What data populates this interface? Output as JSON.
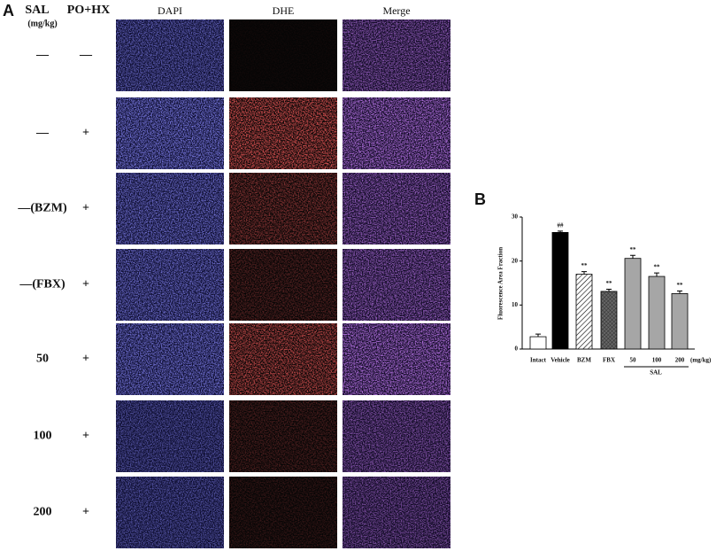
{
  "panel_a": {
    "label": "A",
    "sal_header": "SAL",
    "sal_unit": "(mg/kg)",
    "pohx_header": "PO+HX",
    "columns": [
      "DAPI",
      "DHE",
      "Merge"
    ],
    "rows": [
      {
        "sal": "—",
        "pohx": "—"
      },
      {
        "sal": "—",
        "pohx": "+"
      },
      {
        "sal": "—(BZM)",
        "pohx": "+"
      },
      {
        "sal": "—(FBX)",
        "pohx": "+"
      },
      {
        "sal": "50",
        "pohx": "+"
      },
      {
        "sal": "100",
        "pohx": "+"
      },
      {
        "sal": "200",
        "pohx": "+"
      }
    ]
  },
  "chart_data": {
    "type": "bar",
    "panel_label": "B",
    "ylabel": "Fluorescence Area Fraction",
    "categories": [
      "Intact",
      "Vehicle",
      "BZM",
      "FBX",
      "50",
      "100",
      "200"
    ],
    "values": [
      2.8,
      26.5,
      17,
      13.1,
      20.6,
      16.5,
      12.6
    ],
    "errors": [
      0.6,
      0.3,
      0.6,
      0.5,
      0.7,
      0.8,
      0.6
    ],
    "colors": [
      "#ffffff",
      "#000000",
      "#ffffff",
      "#555555",
      "#a6a6a6",
      "#a6a6a6",
      "#a6a6a6"
    ],
    "patterns": [
      "none",
      "none",
      "diagonal",
      "cross",
      "none",
      "none",
      "none"
    ],
    "annotations": [
      null,
      "##",
      "**",
      "**",
      "**",
      "**",
      "**"
    ],
    "group_label": "SAL",
    "unit_label": "(mg/kg)",
    "ylim": [
      0,
      30
    ],
    "yticks": [
      0,
      10,
      20,
      30
    ]
  }
}
